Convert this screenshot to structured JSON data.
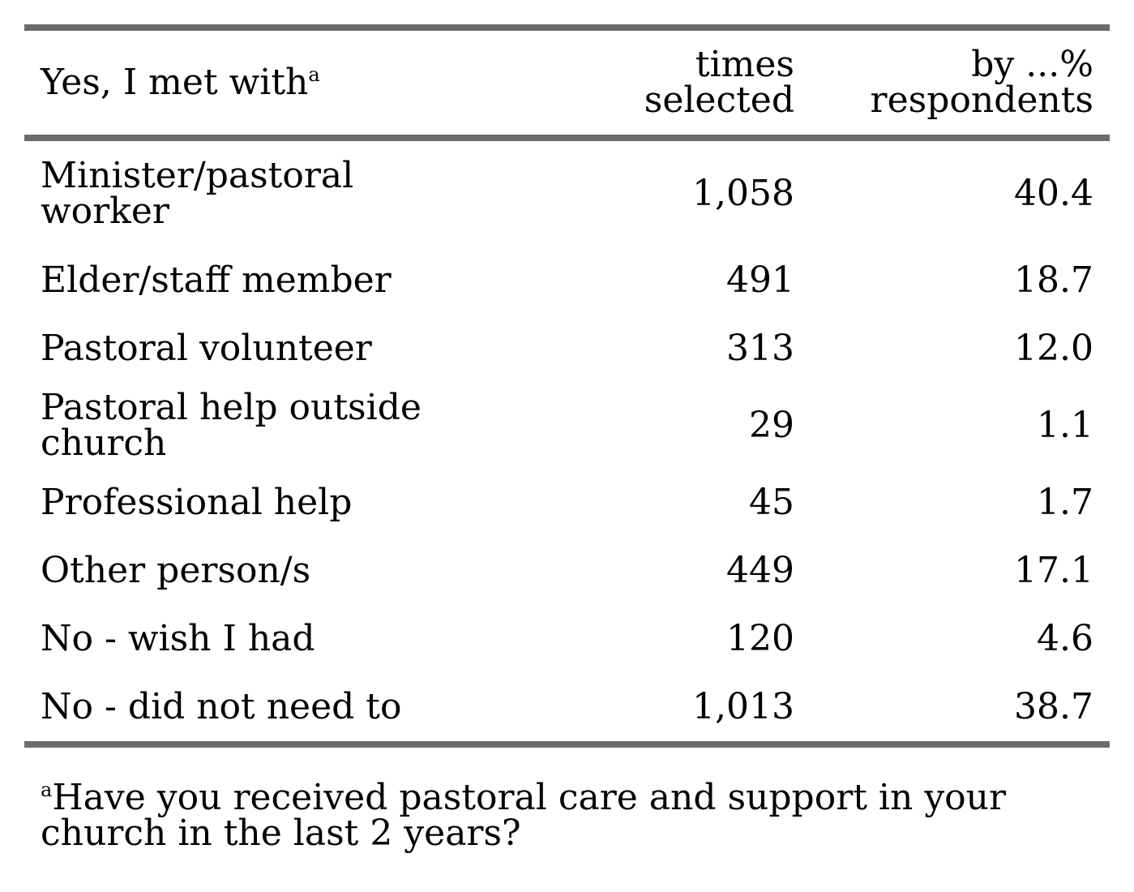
{
  "table": {
    "header": {
      "label": "Yes, I met with",
      "label_footnote_marker": "a",
      "times_line1": "times",
      "times_line2": "selected",
      "pct_line1": "by ...%",
      "pct_line2": "respondents"
    },
    "rows": [
      {
        "label_line1": "Minister/pastoral",
        "label_line2": "worker",
        "times": "1,058",
        "pct": "40.4"
      },
      {
        "label_line1": "Elder/staff member",
        "label_line2": "",
        "times": "491",
        "pct": "18.7"
      },
      {
        "label_line1": "Pastoral volunteer",
        "label_line2": "",
        "times": "313",
        "pct": "12.0"
      },
      {
        "label_line1": "Pastoral help outside",
        "label_line2": "church",
        "times": "29",
        "pct": "1.1"
      },
      {
        "label_line1": "Professional help",
        "label_line2": "",
        "times": "45",
        "pct": "1.7"
      },
      {
        "label_line1": "Other person/s",
        "label_line2": "",
        "times": "449",
        "pct": "17.1"
      },
      {
        "label_line1": "No - wish I had",
        "label_line2": "",
        "times": "120",
        "pct": "4.6"
      },
      {
        "label_line1": "No - did not need to",
        "label_line2": "",
        "times": "1,013",
        "pct": "38.7"
      }
    ]
  },
  "footnote": {
    "marker": "a",
    "line1": "Have you received pastoral care and support in your",
    "line2": "church in the last 2 years?"
  },
  "colors": {
    "rule": "#6b6b6b",
    "text": "#000000",
    "background": "#ffffff"
  }
}
